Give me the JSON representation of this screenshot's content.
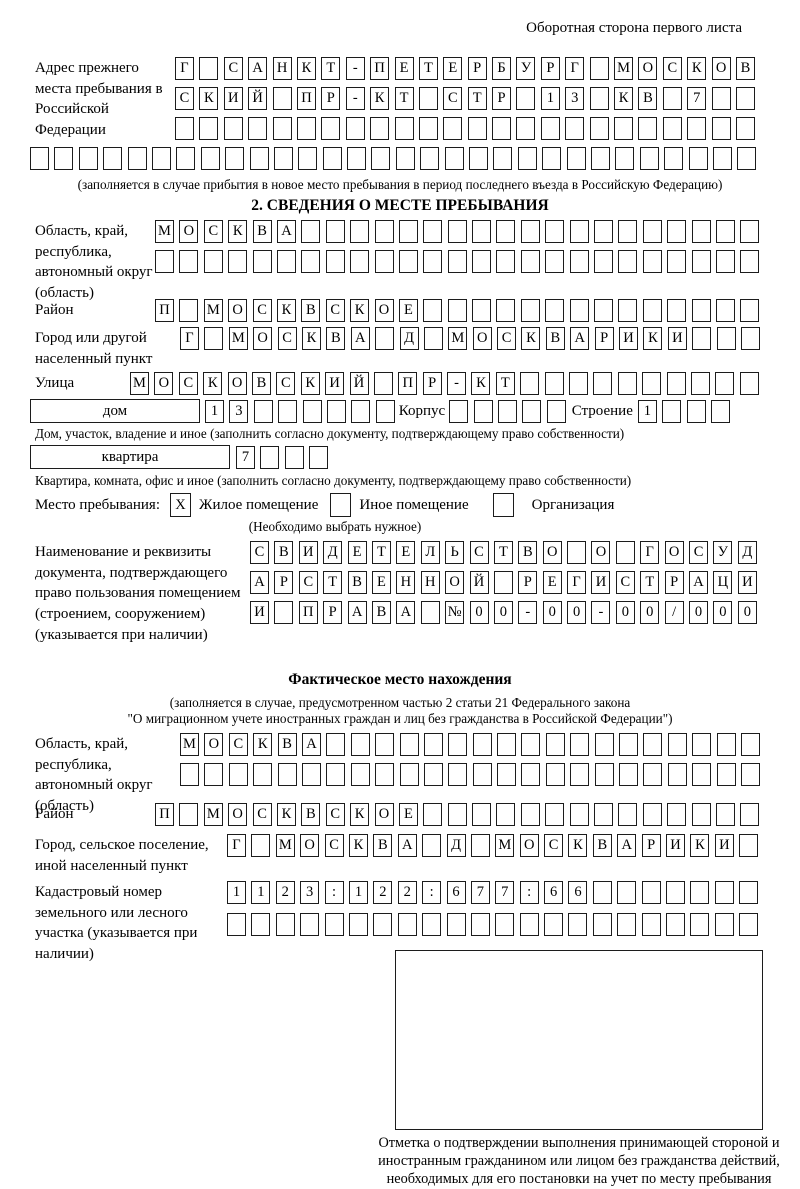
{
  "header": {
    "note": "Оборотная сторона первого листа"
  },
  "prev_address": {
    "label": "Адрес прежнего места пребывания в Российской Федерации",
    "rows": [
      {
        "chars": "Г САНКТ-ПЕТЕРБУРГ МОСКОВ",
        "count": 24
      },
      {
        "chars": "СКИЙ ПР-КТ СТР 13 КВ 7",
        "count": 24
      },
      {
        "chars": "",
        "count": 24
      },
      {
        "chars": "",
        "count": 30
      }
    ],
    "note": "(заполняется в случае прибытия в новое место пребывания в период последнего въезда в Российскую Федерацию)"
  },
  "section2": {
    "title": "2. СВЕДЕНИЯ О МЕСТЕ ПРЕБЫВАНИЯ",
    "region": {
      "label": "Область, край, республика, автономный округ (область)",
      "rows": [
        {
          "chars": "МОСКВА",
          "count": 25
        },
        {
          "chars": "",
          "count": 25
        }
      ]
    },
    "district": {
      "label": "Район",
      "row": {
        "chars": "П МОСКВСКОЕ",
        "count": 25
      }
    },
    "city": {
      "label": "Город или другой населенный пункт",
      "row": {
        "chars": "Г МОСКВА Д МОСКВАРИКИ",
        "count": 24
      }
    },
    "street": {
      "label": "Улица",
      "row": {
        "chars": "МОСКОВСКИЙ ПР-КТ",
        "count": 26
      }
    },
    "house": {
      "box_label": "дом",
      "number_row": {
        "chars": "13",
        "count": 8
      },
      "korpus_label": "Корпус",
      "korpus_row": {
        "chars": "",
        "count": 5
      },
      "stroenie_label": "Строение",
      "stroenie_row": {
        "chars": "1",
        "count": 4
      },
      "caption": "Дом, участок, владение и иное (заполнить согласно документу, подтверждающему право собственности)"
    },
    "apartment": {
      "box_label": "квартира",
      "row": {
        "chars": "7",
        "count": 4
      },
      "caption": "Квартира, комната, офис и иное (заполнить согласно документу, подтверждающему право собственности)"
    },
    "stay_type": {
      "label": "Место пребывания:",
      "options": [
        {
          "label": "Жилое помещение",
          "checked": "X"
        },
        {
          "label": "Иное помещение",
          "checked": ""
        },
        {
          "label": "Организация",
          "checked": ""
        }
      ],
      "note": "(Необходимо выбрать нужное)"
    },
    "document": {
      "label": "Наименование и реквизиты документа, подтверждающего право пользования помещением (строением, сооружением) (указывается при наличии)",
      "rows": [
        {
          "chars": "СВИДЕТЕЛЬСТВО О ГОСУД",
          "count": 21
        },
        {
          "chars": "АРСТВЕННОЙ РЕГИСТРАЦИ",
          "count": 21
        },
        {
          "chars": "И ПРАВА №00-00-00/000",
          "count": 21
        }
      ]
    }
  },
  "actual_location": {
    "title": "Фактическое место нахождения",
    "note_line1": "(заполняется в случае, предусмотренном частью 2 статьи 21 Федерального закона",
    "note_line2": "\"О миграционном учете иностранных граждан и лиц без гражданства в Российской Федерации\")",
    "region": {
      "label": "Область, край, республика, автономный округ (область)",
      "rows": [
        {
          "chars": "МОСКВА",
          "count": 24
        },
        {
          "chars": "",
          "count": 24
        }
      ]
    },
    "district": {
      "label": "Район",
      "row": {
        "chars": "П МОСКВСКОЕ",
        "count": 25
      }
    },
    "city": {
      "label": "Город, сельское поселение, иной населенный пункт",
      "row": {
        "chars": "Г МОСКВА Д МОСКВАРИКИ",
        "count": 22
      }
    },
    "cadastral": {
      "label": "Кадастровый номер земельного или лесного участка (указывается при наличии)",
      "rows": [
        {
          "chars": "1123:122:677:66",
          "count": 22
        },
        {
          "chars": "",
          "count": 22
        }
      ]
    },
    "stamp_caption": "Отметка о подтверждении выполнения принимающей стороной и иностранным гражданином или лицом без гражданства действий, необходимых для его постановки на учет по месту пребывания"
  }
}
